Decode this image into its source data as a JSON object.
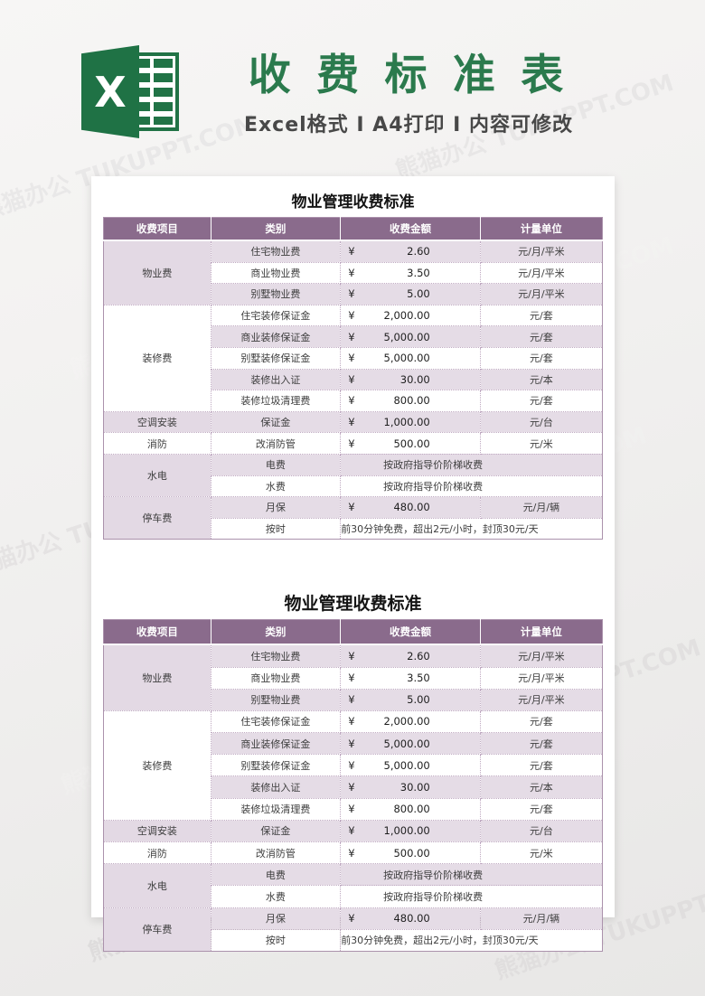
{
  "watermark": {
    "text": "熊猫办公 TUKUPPT.COM"
  },
  "banner": {
    "icon_letter": "X",
    "title": "收 费 标 准 表",
    "subtitle": "Excel格式 Ⅰ A4打印 Ⅰ 内容可修改",
    "colors": {
      "icon_green": "#217346",
      "title_green": "#2b7a4d",
      "subtitle_gray": "#484848"
    }
  },
  "sheet": {
    "tables": [
      {
        "title": "物业管理收费标准"
      },
      {
        "title": "物业管理收费标准"
      }
    ],
    "columns": [
      "收费项目",
      "类别",
      "收费金额",
      "计量单位"
    ],
    "groups": [
      {
        "item": "物业费",
        "shade": "purple",
        "rows": [
          {
            "category": "住宅物业费",
            "currency": "¥",
            "amount": "2.60",
            "unit": "元/月/平米"
          },
          {
            "category": "商业物业费",
            "currency": "¥",
            "amount": "3.50",
            "unit": "元/月/平米"
          },
          {
            "category": "别墅物业费",
            "currency": "¥",
            "amount": "5.00",
            "unit": "元/月/平米"
          }
        ]
      },
      {
        "item": "装修费",
        "shade": "white",
        "rows": [
          {
            "category": "住宅装修保证金",
            "currency": "¥",
            "amount": "2,000.00",
            "unit": "元/套"
          },
          {
            "category": "商业装修保证金",
            "currency": "¥",
            "amount": "5,000.00",
            "unit": "元/套"
          },
          {
            "category": "别墅装修保证金",
            "currency": "¥",
            "amount": "5,000.00",
            "unit": "元/套"
          },
          {
            "category": "装修出入证",
            "currency": "¥",
            "amount": "30.00",
            "unit": "元/本"
          },
          {
            "category": "装修垃圾清理费",
            "currency": "¥",
            "amount": "800.00",
            "unit": "元/套"
          }
        ]
      },
      {
        "item": "空调安装",
        "shade": "purple",
        "rows": [
          {
            "category": "保证金",
            "currency": "¥",
            "amount": "1,000.00",
            "unit": "元/台"
          }
        ]
      },
      {
        "item": "消防",
        "shade": "white",
        "rows": [
          {
            "category": "改消防管",
            "currency": "¥",
            "amount": "500.00",
            "unit": "元/米"
          }
        ]
      },
      {
        "item": "水电",
        "shade": "purple",
        "rows": [
          {
            "category": "电费",
            "note": "按政府指导价阶梯收费"
          },
          {
            "category": "水费",
            "note": "按政府指导价阶梯收费"
          }
        ]
      },
      {
        "item": "停车费",
        "shade": "purple",
        "rows": [
          {
            "category": "月保",
            "currency": "¥",
            "amount": "480.00",
            "unit": "元/月/辆"
          },
          {
            "category": "按时",
            "note": "前30分钟免费，超出2元/小时，封顶30元/天"
          }
        ]
      }
    ],
    "colors": {
      "header_bg": "#8a6b8c",
      "row_purple": "#e5dce6",
      "row_white": "#ffffff",
      "border": "#bfa9c1"
    }
  }
}
